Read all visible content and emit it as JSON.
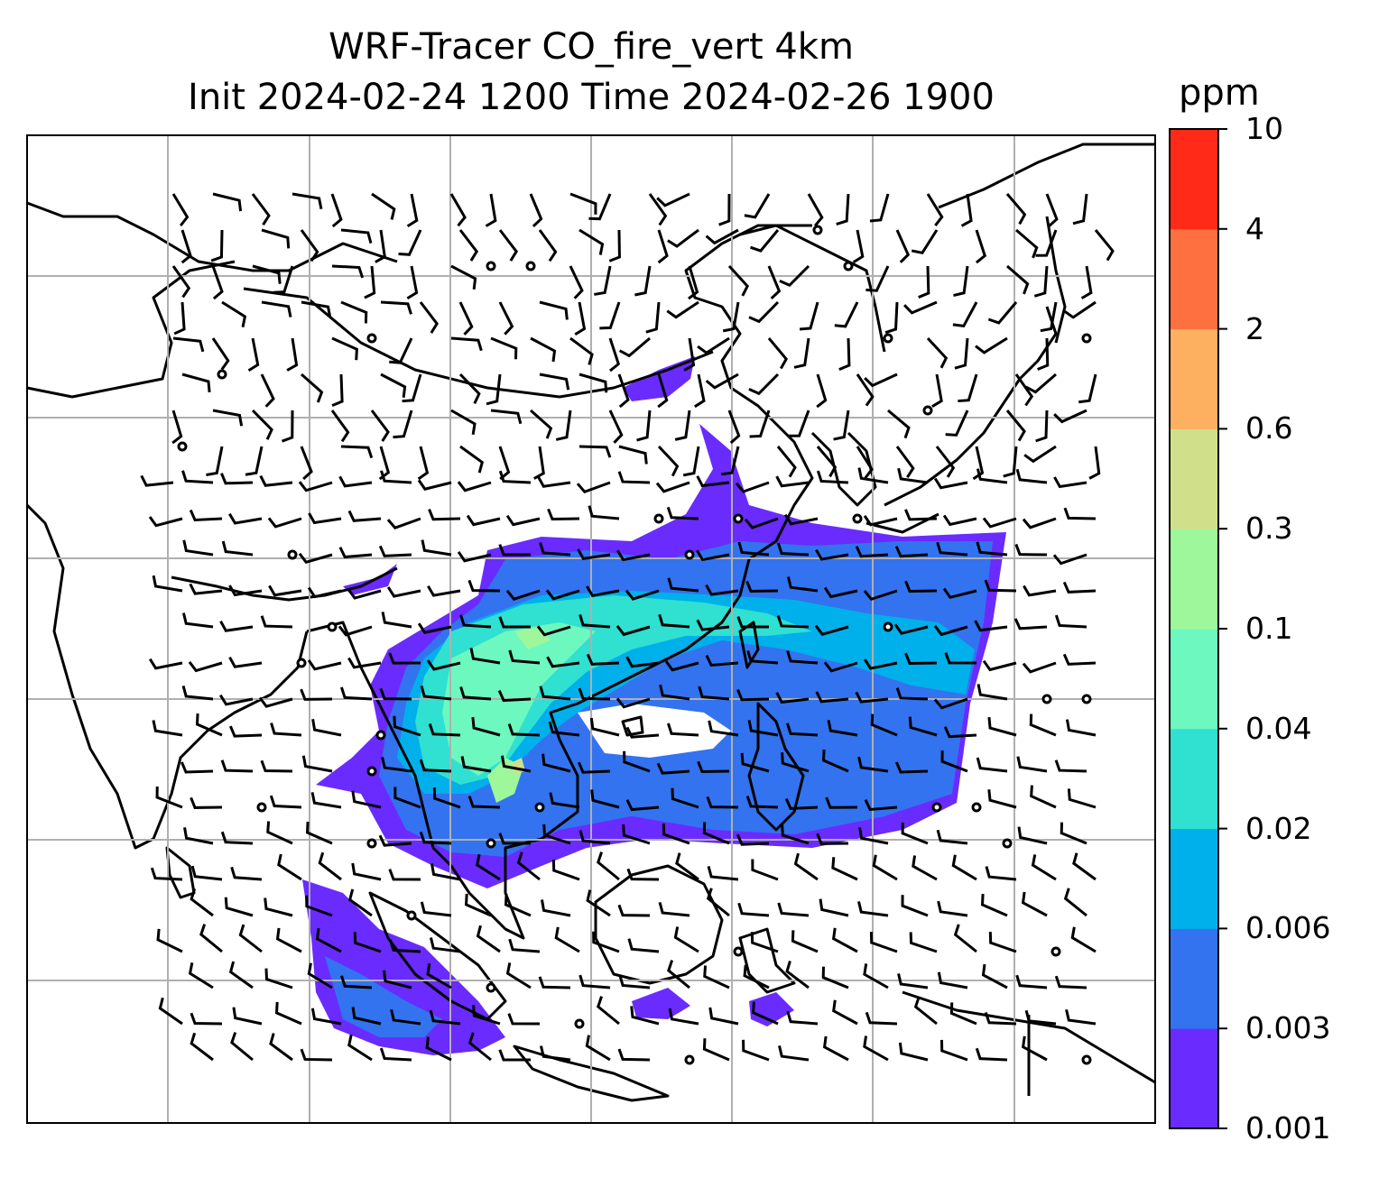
{
  "title": {
    "line1": "WRF-Tracer CO_fire_vert 4km",
    "line2": "Init 2024-02-24 1200 Time 2024-02-26 1900"
  },
  "colorbar": {
    "unit": "ppm",
    "ticks": [
      "0.001",
      "0.003",
      "0.006",
      "0.02",
      "0.04",
      "0.1",
      "0.3",
      "0.6",
      "2",
      "4",
      "10"
    ],
    "colors": [
      "#6a2bff",
      "#3373f0",
      "#00b0ea",
      "#30e0d0",
      "#6df8c0",
      "#9ef79a",
      "#d0e08a",
      "#fcb060",
      "#ff7040",
      "#ff2a18"
    ]
  },
  "map": {
    "land_color": "#ffffff",
    "coastline_color": "#000000",
    "grid_color": "#b0b0b0",
    "barb_color": "#000000"
  }
}
